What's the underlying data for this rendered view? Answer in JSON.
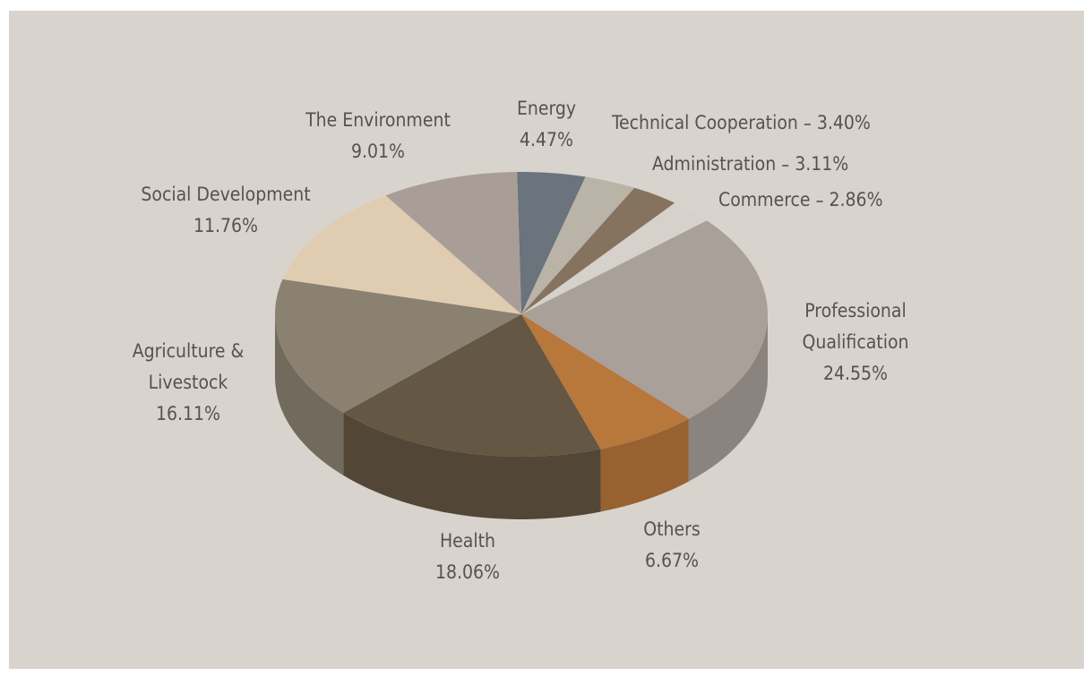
{
  "chart_data": {
    "type": "pie",
    "categories": [
      "Energy",
      "Technical Cooperation",
      "Administration",
      "Commerce",
      "Professional Qualification",
      "Others",
      "Health",
      "Agriculture & Livestock",
      "Social Development",
      "The Environment"
    ],
    "values": [
      4.47,
      3.4,
      3.11,
      2.86,
      24.55,
      6.67,
      18.06,
      16.11,
      11.76,
      9.01
    ],
    "value_labels": [
      "4.47%",
      "3.40%",
      "3.11%",
      "2.86%",
      "24.55%",
      "6.67%",
      "18.06%",
      "16.11%",
      "11.76%",
      "9.01%"
    ],
    "colors": [
      "#6b737c",
      "#b9b3a8",
      "#85735f",
      "#d6d1cb",
      "#aaa09a",
      "#b8773b",
      "#645743",
      "#8b8171",
      "#e0ccb0",
      "#a99e97"
    ]
  }
}
